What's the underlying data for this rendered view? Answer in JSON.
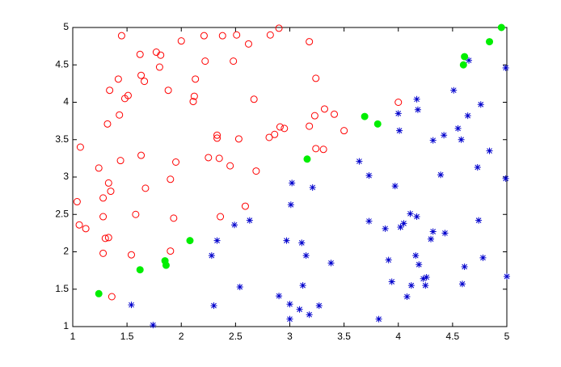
{
  "chart_data": {
    "type": "scatter",
    "xlim": [
      1,
      5
    ],
    "ylim": [
      1,
      5
    ],
    "xticks": [
      1,
      1.5,
      2,
      2.5,
      3,
      3.5,
      4,
      4.5,
      5
    ],
    "yticks": [
      1,
      1.5,
      2,
      2.5,
      3,
      3.5,
      4,
      4.5,
      5
    ],
    "grid": false,
    "series": [
      {
        "color": "#ff0000",
        "marker": "circle",
        "x": [
          1.45,
          1.62,
          1.81,
          1.77,
          1.8,
          2.0,
          2.21,
          2.38,
          2.51,
          2.62,
          2.82,
          2.9,
          3.18,
          2.48,
          2.22,
          2.13,
          1.66,
          1.63,
          1.42,
          1.34,
          1.51,
          1.48,
          1.88,
          2.12,
          2.11,
          3.24,
          2.67,
          1.43,
          1.32,
          4.0,
          3.32,
          3.41,
          3.23,
          3.18,
          3.5,
          2.91,
          2.95,
          2.86,
          2.81,
          2.33,
          2.33,
          2.53,
          1.07,
          3.24,
          3.31,
          1.63,
          1.44,
          1.24,
          2.25,
          1.95,
          2.35,
          2.45,
          2.69,
          1.9,
          1.33,
          1.35,
          1.67,
          1.28,
          1.04,
          2.59,
          1.58,
          1.28,
          2.36,
          1.06,
          1.12,
          1.93,
          1.33,
          1.3,
          1.54,
          1.28,
          1.9,
          1.36
        ],
        "values": [
          4.89,
          4.64,
          4.63,
          4.67,
          4.47,
          4.82,
          4.89,
          4.89,
          4.9,
          4.78,
          4.9,
          4.99,
          4.81,
          4.55,
          4.55,
          4.31,
          4.28,
          4.36,
          4.31,
          4.16,
          4.09,
          4.05,
          4.16,
          4.08,
          4.01,
          4.32,
          4.04,
          3.83,
          3.71,
          4.0,
          3.91,
          3.84,
          3.82,
          3.68,
          3.62,
          3.67,
          3.65,
          3.57,
          3.53,
          3.52,
          3.56,
          3.51,
          3.4,
          3.38,
          3.37,
          3.29,
          3.22,
          3.12,
          3.26,
          3.2,
          3.25,
          3.15,
          3.08,
          2.97,
          2.92,
          2.81,
          2.85,
          2.72,
          2.67,
          2.61,
          2.5,
          2.47,
          2.47,
          2.36,
          2.31,
          2.45,
          2.19,
          2.18,
          1.96,
          1.98,
          2.01,
          1.4
        ]
      },
      {
        "color": "#0000cc",
        "marker": "star",
        "x": [
          1.54,
          1.74,
          2.3,
          2.28,
          2.33,
          2.49,
          2.63,
          2.54,
          2.9,
          3.0,
          3.0,
          3.09,
          3.18,
          3.27,
          3.12,
          3.15,
          3.11,
          2.97,
          3.01,
          3.02,
          3.21,
          3.38,
          3.64,
          3.73,
          3.73,
          3.82,
          3.88,
          3.91,
          3.94,
          3.97,
          4.0,
          4.01,
          4.02,
          4.05,
          4.08,
          4.11,
          4.12,
          4.16,
          4.17,
          4.17,
          4.18,
          4.19,
          4.23,
          4.25,
          4.26,
          4.3,
          4.32,
          4.32,
          4.39,
          4.42,
          4.43,
          4.51,
          4.55,
          4.58,
          4.59,
          4.61,
          4.64,
          4.65,
          4.74,
          4.76,
          4.73,
          4.78,
          4.84,
          4.99,
          4.99,
          5.0
        ],
        "values": [
          1.29,
          1.02,
          1.28,
          1.95,
          2.15,
          2.36,
          2.42,
          1.53,
          1.41,
          1.3,
          1.1,
          1.23,
          1.16,
          1.28,
          1.55,
          1.95,
          2.12,
          2.15,
          2.63,
          2.92,
          2.86,
          1.85,
          3.21,
          3.02,
          2.41,
          1.1,
          2.31,
          1.89,
          1.6,
          2.88,
          3.85,
          3.62,
          2.33,
          2.38,
          1.4,
          2.51,
          1.55,
          1.95,
          2.47,
          4.04,
          3.9,
          1.83,
          1.64,
          1.55,
          1.66,
          2.17,
          3.49,
          2.27,
          3.03,
          3.56,
          2.25,
          4.16,
          3.65,
          3.5,
          1.57,
          1.8,
          3.82,
          4.56,
          2.42,
          3.97,
          3.13,
          1.92,
          3.35,
          4.46,
          2.98,
          1.67
        ]
      },
      {
        "color": "#00ee00",
        "marker": "filled",
        "x": [
          1.24,
          1.62,
          1.86,
          1.85,
          2.08,
          3.16,
          3.69,
          3.81,
          4.6,
          4.61,
          4.84,
          4.95
        ],
        "values": [
          1.44,
          1.76,
          1.82,
          1.88,
          2.15,
          3.24,
          3.81,
          3.71,
          4.5,
          4.61,
          4.81,
          5.0
        ]
      }
    ]
  }
}
